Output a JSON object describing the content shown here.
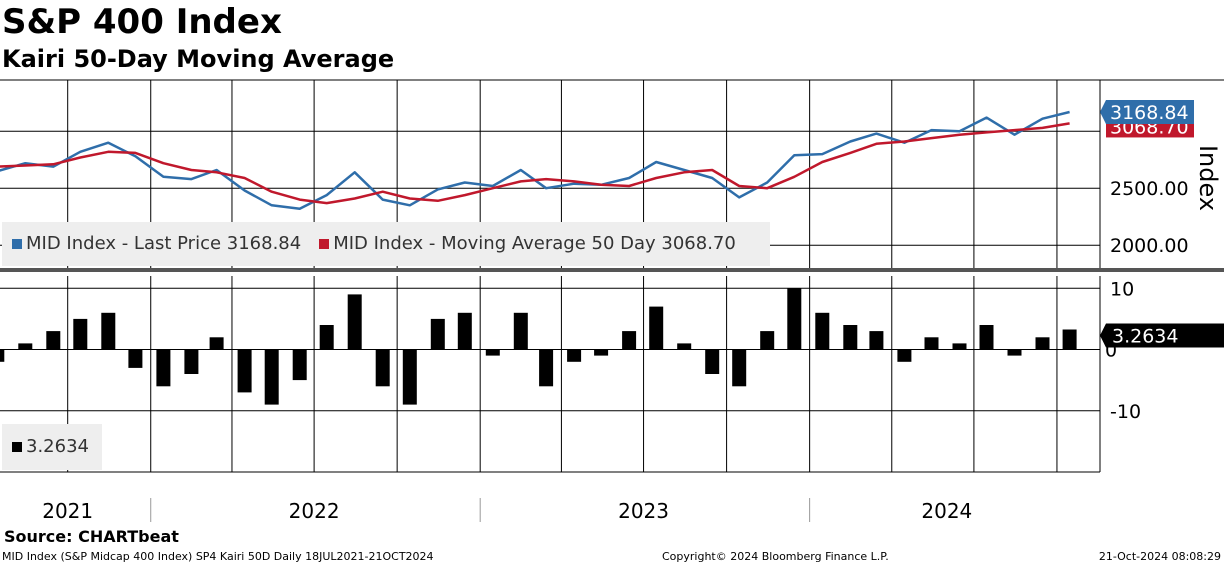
{
  "title": "S&P 400 Index",
  "subtitle": "Kairi 50-Day Moving Average",
  "source": "Source: CHARTbeat",
  "footer": {
    "left": "MID Index (S&P Midcap 400 Index) SP4 Kairi 50D  Daily 18JUL2021-21OCT2024",
    "center": "Copyright© 2024 Bloomberg Finance L.P.",
    "right": "21-Oct-2024 08:08:29"
  },
  "colors": {
    "price": "#2f6eaa",
    "ma": "#c0182c",
    "kairi": "#000000",
    "grid": "#000000",
    "legend_bg": "#eeeeee"
  },
  "legend": {
    "price": "MID Index - Last Price 3168.84",
    "ma": "MID Index - Moving Average 50 Day 3068.70",
    "kairi": "3.2634"
  },
  "chart_data": [
    {
      "type": "line",
      "panel": "upper",
      "ylabel": "Index",
      "yticks": [
        2000,
        2500
      ],
      "ytick_labels": [
        "2000.00",
        "2500.00"
      ],
      "ylim": [
        1800,
        3450
      ],
      "x_range": [
        "2021-07-18",
        "2024-10-21"
      ],
      "last_value_labels": {
        "price": "3168.84",
        "ma": "3068.70"
      },
      "series": [
        {
          "name": "MID Index - Last Price",
          "x": [
            "2021-07",
            "2021-08",
            "2021-09",
            "2021-10",
            "2021-11",
            "2021-12",
            "2022-01",
            "2022-02",
            "2022-03",
            "2022-04",
            "2022-05",
            "2022-06",
            "2022-07",
            "2022-08",
            "2022-09",
            "2022-10",
            "2022-11",
            "2022-12",
            "2023-01",
            "2023-02",
            "2023-03",
            "2023-04",
            "2023-05",
            "2023-06",
            "2023-07",
            "2023-08",
            "2023-09",
            "2023-10",
            "2023-11",
            "2023-12",
            "2024-01",
            "2024-02",
            "2024-03",
            "2024-04",
            "2024-05",
            "2024-06",
            "2024-07",
            "2024-08",
            "2024-09",
            "2024-10"
          ],
          "values": [
            2650,
            2720,
            2690,
            2820,
            2900,
            2780,
            2600,
            2580,
            2660,
            2480,
            2350,
            2320,
            2440,
            2640,
            2400,
            2350,
            2490,
            2550,
            2520,
            2660,
            2500,
            2540,
            2530,
            2590,
            2730,
            2660,
            2590,
            2420,
            2550,
            2790,
            2800,
            2910,
            2980,
            2900,
            3010,
            3000,
            3120,
            2970,
            3110,
            3168.84
          ]
        },
        {
          "name": "MID Index - Moving Average 50 Day",
          "x": [
            "2021-07",
            "2021-08",
            "2021-09",
            "2021-10",
            "2021-11",
            "2021-12",
            "2022-01",
            "2022-02",
            "2022-03",
            "2022-04",
            "2022-05",
            "2022-06",
            "2022-07",
            "2022-08",
            "2022-09",
            "2022-10",
            "2022-11",
            "2022-12",
            "2023-01",
            "2023-02",
            "2023-03",
            "2023-04",
            "2023-05",
            "2023-06",
            "2023-07",
            "2023-08",
            "2023-09",
            "2023-10",
            "2023-11",
            "2023-12",
            "2024-01",
            "2024-02",
            "2024-03",
            "2024-04",
            "2024-05",
            "2024-06",
            "2024-07",
            "2024-08",
            "2024-09",
            "2024-10"
          ],
          "values": [
            2690,
            2700,
            2710,
            2770,
            2820,
            2810,
            2720,
            2660,
            2640,
            2590,
            2470,
            2400,
            2370,
            2410,
            2470,
            2410,
            2390,
            2440,
            2500,
            2560,
            2580,
            2560,
            2530,
            2520,
            2590,
            2640,
            2660,
            2520,
            2500,
            2600,
            2730,
            2810,
            2890,
            2910,
            2940,
            2970,
            2990,
            3010,
            3030,
            3068.7
          ]
        }
      ]
    },
    {
      "type": "bar",
      "panel": "lower",
      "yticks": [
        -10,
        0,
        10
      ],
      "ytick_labels": [
        "-10",
        "0",
        "10"
      ],
      "ylim": [
        -20,
        12
      ],
      "last_value_label": "3.2634",
      "x_tick_labels": [
        "2021",
        "2022",
        "2023",
        "2024"
      ],
      "series": [
        {
          "name": "Kairi 50D",
          "x": [
            "2021-07",
            "2021-08",
            "2021-09",
            "2021-10",
            "2021-11",
            "2021-12",
            "2022-01",
            "2022-02",
            "2022-03",
            "2022-04",
            "2022-05",
            "2022-06",
            "2022-07",
            "2022-08",
            "2022-09",
            "2022-10",
            "2022-11",
            "2022-12",
            "2023-01",
            "2023-02",
            "2023-03",
            "2023-04",
            "2023-05",
            "2023-06",
            "2023-07",
            "2023-08",
            "2023-09",
            "2023-10",
            "2023-11",
            "2023-12",
            "2024-01",
            "2024-02",
            "2024-03",
            "2024-04",
            "2024-05",
            "2024-06",
            "2024-07",
            "2024-08",
            "2024-09",
            "2024-10"
          ],
          "values": [
            -2,
            1,
            3,
            5,
            6,
            -3,
            -6,
            -4,
            2,
            -7,
            -9,
            -5,
            4,
            9,
            -6,
            -9,
            5,
            6,
            -1,
            6,
            -6,
            -2,
            -1,
            3,
            7,
            1,
            -4,
            -6,
            3,
            10,
            6,
            4,
            3,
            -2,
            2,
            1,
            4,
            -1,
            2,
            3.2634
          ]
        }
      ]
    }
  ]
}
